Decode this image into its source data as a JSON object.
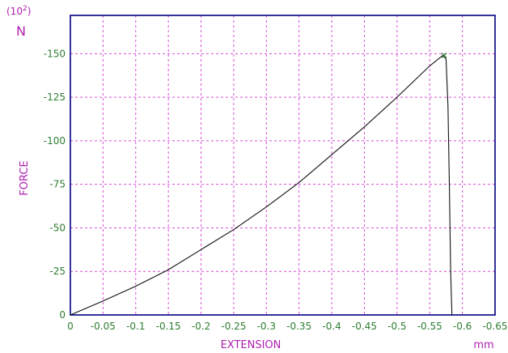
{
  "chart_data": {
    "type": "line",
    "xlabel": "EXTENSION",
    "ylabel": "FORCE",
    "x_unit": "mm",
    "y_unit": "N",
    "y_multiplier_prefix": "(10",
    "y_multiplier_exp": "2",
    "y_multiplier_suffix": ")",
    "xlim": [
      0,
      -0.65
    ],
    "ylim": [
      0,
      172
    ],
    "x_ticks": [
      0,
      -0.05,
      -0.1,
      -0.15,
      -0.2,
      -0.25,
      -0.3,
      -0.35,
      -0.4,
      -0.45,
      -0.5,
      -0.55,
      -0.6,
      -0.65
    ],
    "x_tick_labels": [
      "0",
      "-0.05",
      "-0.1",
      "-0.15",
      "-0.2",
      "-0.25",
      "-0.3",
      "-0.35",
      "-0.4",
      "-0.45",
      "-0.5",
      "-0.55",
      "-0.6",
      "-0.65"
    ],
    "y_ticks": [
      0,
      25,
      50,
      75,
      100,
      125,
      150
    ],
    "y_tick_labels": [
      "0",
      "-25",
      "-50",
      "-75",
      "-100",
      "-125",
      "-150"
    ],
    "grid": true,
    "series": [
      {
        "color": "#111111",
        "x": [
          0,
          -0.05,
          -0.1,
          -0.15,
          -0.2,
          -0.25,
          -0.3,
          -0.35,
          -0.4,
          -0.45,
          -0.5,
          -0.55,
          -0.57,
          -0.575,
          -0.578,
          -0.58,
          -0.582,
          -0.584
        ],
        "y": [
          0,
          8,
          16.5,
          26,
          37.5,
          49,
          62,
          76,
          92,
          108,
          125,
          143,
          149,
          147,
          120,
          75,
          25,
          0
        ]
      }
    ],
    "peak_marker": {
      "x": -0.572,
      "y": 149,
      "color": "#2e7d32"
    }
  }
}
